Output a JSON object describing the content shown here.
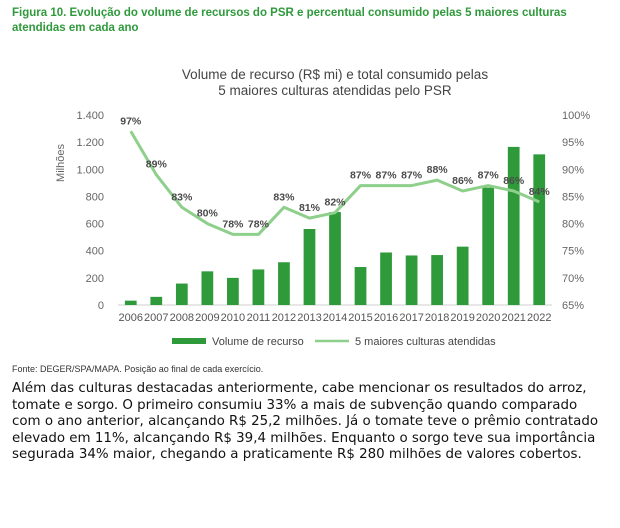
{
  "figure_caption": "Figura 10. Evolução do volume de recursos do PSR e percentual consumido pelas 5 maiores culturas atendidas em cada ano",
  "source_note": "Fonte: DEGER/SPA/MAPA. Posição ao final de cada exercício.",
  "paragraph": "Além das culturas destacadas anteriormente, cabe mencionar os resultados do arroz, tomate e sorgo. O primeiro consumiu 33% a mais de subvenção quando comparado com o ano anterior, alcançando R$ 25,2 milhões. Já o tomate teve o prêmio contratado elevado em 11%, alcançando R$ 39,4 milhões. Enquanto o sorgo teve sua importância segurada 34% maior, chegando a praticamente R$ 280 milhões de valores cobertos.",
  "colors": {
    "bar": "#2e9a3a",
    "line": "#8fcf8c",
    "caption": "#2f9a3c"
  },
  "chart_data": {
    "type": "bar+line",
    "title_lines": [
      "Volume de recurso (R$ mi) e total consumido pelas",
      "5 maiores culturas atendidas pelo PSR"
    ],
    "ylabel_left": "Milhões",
    "categories": [
      "2006",
      "2007",
      "2008",
      "2009",
      "2010",
      "2011",
      "2012",
      "2013",
      "2014",
      "2015",
      "2016",
      "2017",
      "2018",
      "2019",
      "2020",
      "2021",
      "2022"
    ],
    "series": [
      {
        "name": "Volume de recurso",
        "type": "bar",
        "axis": "left",
        "values": [
          32,
          60,
          158,
          248,
          200,
          262,
          315,
          560,
          685,
          280,
          387,
          365,
          368,
          430,
          865,
          1165,
          1110
        ]
      },
      {
        "name": "5 maiores culturas atendidas",
        "type": "line",
        "axis": "right",
        "values": [
          97,
          89,
          83,
          80,
          78,
          78,
          83,
          81,
          82,
          87,
          87,
          87,
          88,
          86,
          87,
          86,
          84
        ],
        "labels": [
          "97%",
          "89%",
          "83%",
          "80%",
          "78%",
          "78%",
          "83%",
          "81%",
          "82%",
          "87%",
          "87%",
          "87%",
          "88%",
          "86%",
          "87%",
          "86%",
          "84%"
        ]
      }
    ],
    "left_axis": {
      "ylim": [
        0,
        1400
      ],
      "ticks": [
        0,
        200,
        400,
        600,
        800,
        1000,
        1200,
        1400
      ],
      "tick_labels": [
        "0",
        "200",
        "400",
        "600",
        "800",
        "1.000",
        "1.200",
        "1.400"
      ]
    },
    "right_axis": {
      "ylim": [
        65,
        100
      ],
      "ticks": [
        65,
        70,
        75,
        80,
        85,
        90,
        95,
        100
      ],
      "tick_labels": [
        "65%",
        "70%",
        "75%",
        "80%",
        "85%",
        "90%",
        "95%",
        "100%"
      ]
    },
    "legend_position": "bottom",
    "grid": false
  }
}
